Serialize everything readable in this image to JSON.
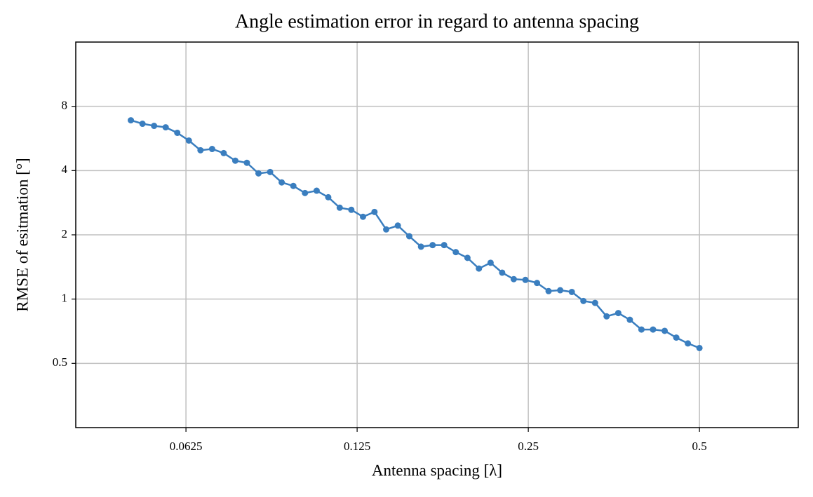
{
  "chart_data": {
    "type": "line",
    "title": "Angle estimation error in regard to antenna spacing",
    "xlabel": "Antenna spacing [λ]",
    "ylabel": "RMSE of esitmation [°]",
    "x": [
      0.05,
      0.05241,
      0.05493,
      0.05757,
      0.06034,
      0.06324,
      0.06629,
      0.06948,
      0.07282,
      0.07632,
      0.07999,
      0.08384,
      0.08788,
      0.0921,
      0.09654,
      0.1012,
      0.1061,
      0.1112,
      0.1165,
      0.1221,
      0.128,
      0.1341,
      0.1406,
      0.1474,
      0.1544,
      0.1619,
      0.1697,
      0.1778,
      0.1864,
      0.1954,
      0.2047,
      0.2146,
      0.2249,
      0.2357,
      0.2471,
      0.259,
      0.2714,
      0.2845,
      0.2982,
      0.3125,
      0.3276,
      0.3433,
      0.3599,
      0.3772,
      0.3953,
      0.4143,
      0.4343,
      0.4552,
      0.4771,
      0.5
    ],
    "series": [
      {
        "color": "#3a7ebf",
        "values": [
          6.88,
          6.63,
          6.48,
          6.38,
          6.01,
          5.53,
          4.98,
          5.05,
          4.83,
          4.45,
          4.35,
          3.88,
          3.94,
          3.52,
          3.39,
          3.14,
          3.22,
          3.0,
          2.68,
          2.62,
          2.43,
          2.56,
          2.12,
          2.21,
          1.97,
          1.76,
          1.79,
          1.79,
          1.66,
          1.56,
          1.39,
          1.48,
          1.33,
          1.24,
          1.23,
          1.19,
          1.09,
          1.1,
          1.08,
          0.98,
          0.96,
          0.83,
          0.86,
          0.8,
          0.72,
          0.72,
          0.71,
          0.66,
          0.62,
          0.59
        ]
      }
    ],
    "xscale": "log",
    "yscale": "log",
    "xlim": [
      0.04,
      0.746
    ],
    "ylim": [
      0.25,
      16
    ],
    "xticks": [
      0.0625,
      0.125,
      0.25,
      0.5
    ],
    "yticks": [
      0.5,
      1,
      2,
      4,
      8
    ],
    "grid": true
  }
}
